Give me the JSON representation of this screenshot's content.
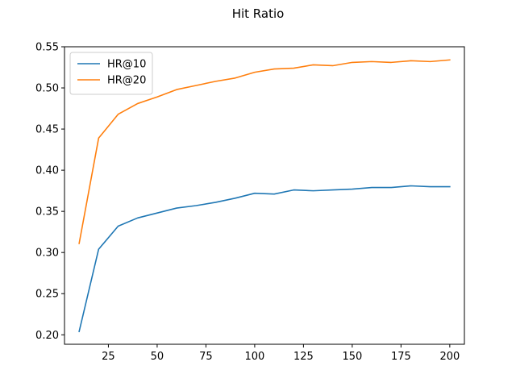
{
  "chart_data": {
    "type": "line",
    "title": "Hit Ratio",
    "xlabel": "",
    "ylabel": "",
    "xlim": [
      2.5,
      207.5
    ],
    "ylim": [
      0.1885,
      0.55
    ],
    "xticks": [
      25,
      50,
      75,
      100,
      125,
      150,
      175,
      200
    ],
    "yticks": [
      0.2,
      0.25,
      0.3,
      0.35,
      0.4,
      0.45,
      0.5,
      0.55
    ],
    "grid": false,
    "legend_position": "top-left",
    "x": [
      10,
      20,
      30,
      40,
      50,
      60,
      70,
      80,
      90,
      100,
      110,
      120,
      130,
      140,
      150,
      160,
      170,
      180,
      190,
      200
    ],
    "series": [
      {
        "name": "HR@10",
        "color": "#1f77b4",
        "values": [
          0.204,
          0.304,
          0.332,
          0.342,
          0.348,
          0.354,
          0.357,
          0.361,
          0.366,
          0.372,
          0.371,
          0.376,
          0.375,
          0.376,
          0.377,
          0.379,
          0.379,
          0.381,
          0.38,
          0.38
        ]
      },
      {
        "name": "HR@20",
        "color": "#ff7f0e",
        "values": [
          0.311,
          0.439,
          0.468,
          0.481,
          0.489,
          0.498,
          0.503,
          0.508,
          0.512,
          0.519,
          0.523,
          0.524,
          0.528,
          0.527,
          0.531,
          0.532,
          0.531,
          0.533,
          0.532,
          0.534
        ]
      }
    ]
  }
}
